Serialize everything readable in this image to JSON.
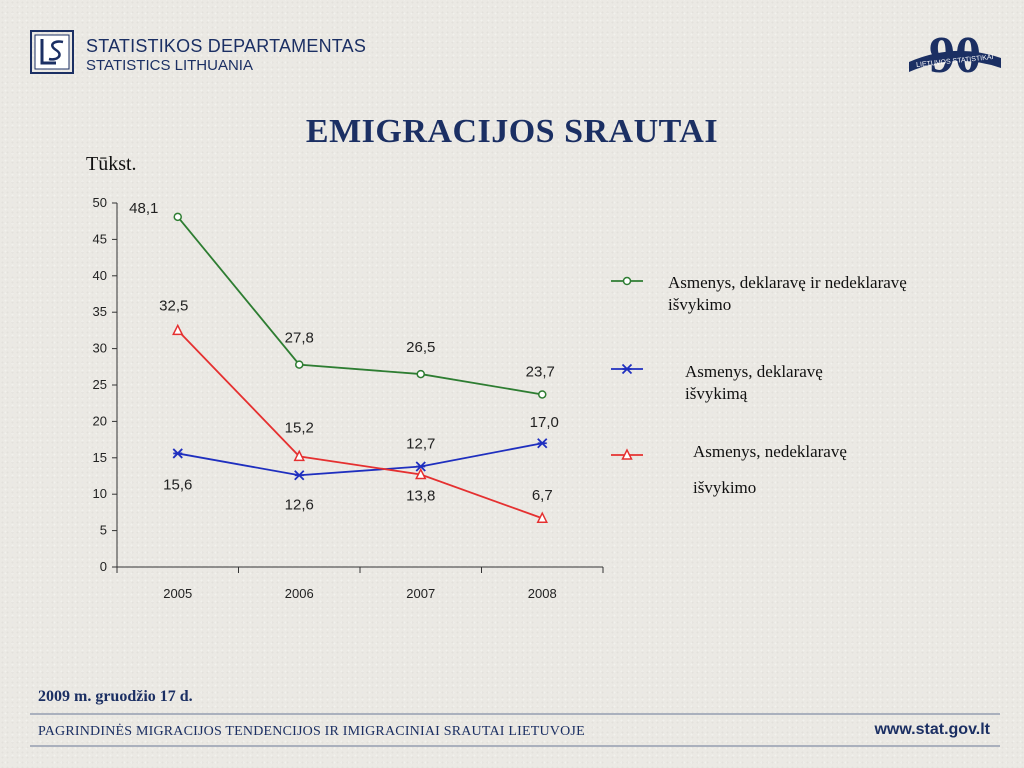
{
  "header": {
    "org_line1": "STATISTIKOS DEPARTAMENTAS",
    "org_line2": "STATISTICS LITHUANIA",
    "anniversary_number": "90",
    "anniversary_text": "LIETUVOS STATISTIKAI"
  },
  "footer": {
    "date": "2009 m. gruodžio 17 d.",
    "text": "PAGRINDINĖS MIGRACIJOS TENDENCIJOS IR IMIGRACINIAI SRAUTAI LIETUVOJE",
    "url": "www.stat.gov.lt"
  },
  "legend": [
    [
      "Asmenys, deklaravę ir nedeklaravę",
      "išvykimo"
    ],
    [
      "Asmenys, deklaravę",
      "išvykimą"
    ],
    [
      "Asmenys, nedeklaravę",
      "išvykimo"
    ]
  ],
  "colors": {
    "title": "#1b2f63",
    "series_green": "#2e7d32",
    "series_blue": "#1f2fbf",
    "series_red": "#e53030"
  },
  "chart_data": {
    "type": "line",
    "title": "EMIGRACIJOS SRAUTAI",
    "ylabel": "Tūkst.",
    "xlabel": "",
    "categories": [
      "2005",
      "2006",
      "2007",
      "2008"
    ],
    "ylim": [
      0,
      50
    ],
    "yticks": [
      0,
      5,
      10,
      15,
      20,
      25,
      30,
      35,
      40,
      45,
      50
    ],
    "grid": false,
    "legend_position": "right",
    "series": [
      {
        "name": "Asmenys, deklaravę ir nedeklaravę išvykimo",
        "values": [
          48.1,
          27.8,
          26.5,
          23.7
        ],
        "labels": [
          "48,1",
          "27,8",
          "26,5",
          "23,7"
        ],
        "color": "#2e7d32",
        "marker": "circle"
      },
      {
        "name": "Asmenys, deklaravę išvykimą",
        "values": [
          15.6,
          12.6,
          13.8,
          17.0
        ],
        "labels": [
          "15,6",
          "12,6",
          "13,8",
          "17,0"
        ],
        "color": "#1f2fbf",
        "marker": "star"
      },
      {
        "name": "Asmenys, nedeklaravę išvykimo",
        "values": [
          32.5,
          15.2,
          12.7,
          6.7
        ],
        "labels": [
          "32,5",
          "15,2",
          "12,7",
          "6,7"
        ],
        "color": "#e53030",
        "marker": "triangle"
      }
    ]
  }
}
